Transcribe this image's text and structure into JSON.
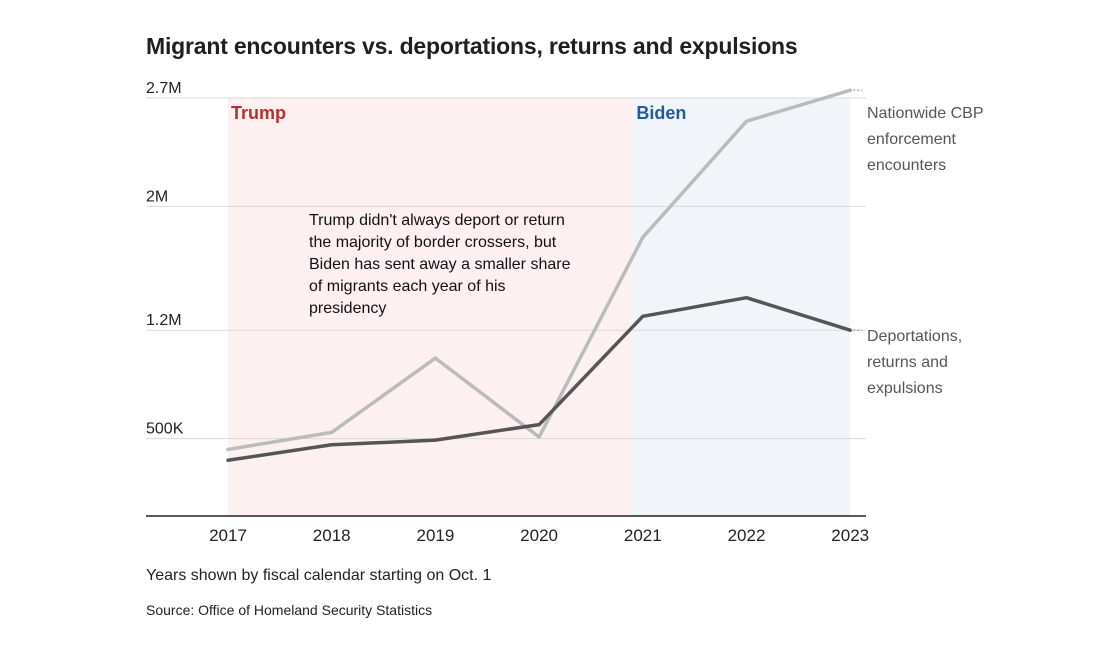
{
  "title": "Migrant encounters vs. deportations, returns and expulsions",
  "note": "Years shown by fiscal calendar starting on Oct. 1",
  "source": "Source: Office of Homeland Security Statistics",
  "annotation": "Trump didn't always deport or return the majority of border crossers, but Biden has sent away a smaller share of migrants each year of his presidency",
  "colors": {
    "trump_label": "#b5312b",
    "biden_label": "#1f5c99",
    "trump_band": "#fcf1f0",
    "biden_band": "#f1f4f9",
    "encounters": "#bbbbbb",
    "deportations": "#555555",
    "grid": "#d9d9d9",
    "axis": "#222222"
  },
  "chart_data": {
    "type": "line",
    "title": "Migrant encounters vs. deportations, returns and expulsions",
    "x": [
      "2017",
      "2018",
      "2019",
      "2020",
      "2021",
      "2022",
      "2023"
    ],
    "series": [
      {
        "name": "Nationwide CBP enforcement encounters",
        "label": "Nationwide CBP enforcement encounters",
        "values": [
          430000,
          540000,
          1020000,
          510000,
          1800000,
          2550000,
          2750000
        ]
      },
      {
        "name": "Deportations, returns and expulsions",
        "label": "Deportations, returns and expulsions",
        "values": [
          360000,
          460000,
          490000,
          590000,
          1290000,
          1410000,
          1200000
        ]
      }
    ],
    "yticks": [
      {
        "value": 500000,
        "label": "500K"
      },
      {
        "value": 1200000,
        "label": "1.2M"
      },
      {
        "value": 2000000,
        "label": "2M"
      },
      {
        "value": 2700000,
        "label": "2.7M"
      }
    ],
    "ylim": [
      0,
      2700000
    ],
    "periods": [
      {
        "name": "Trump",
        "start": "2017",
        "end": "2020"
      },
      {
        "name": "Biden",
        "start": "2021",
        "end": "2023"
      }
    ],
    "xlabel": "",
    "ylabel": ""
  }
}
